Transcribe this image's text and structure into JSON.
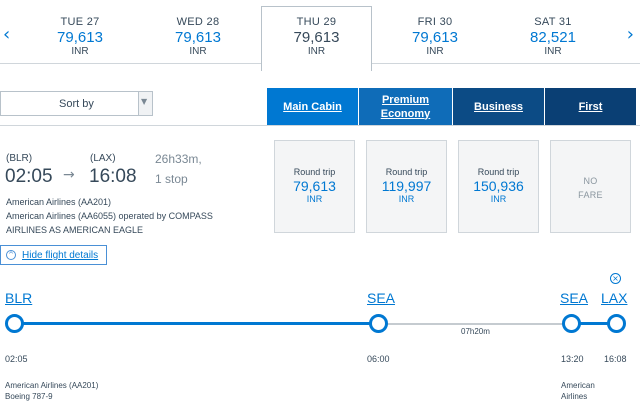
{
  "date_strip": {
    "prev_arrow": "‹",
    "next_arrow": "›",
    "days": [
      {
        "dow": "TUE 27",
        "price": "79,613",
        "currency": "INR"
      },
      {
        "dow": "WED 28",
        "price": "79,613",
        "currency": "INR"
      },
      {
        "dow": "THU 29",
        "price": "79,613",
        "currency": "INR"
      },
      {
        "dow": "FRI 30",
        "price": "79,613",
        "currency": "INR"
      },
      {
        "dow": "SAT 31",
        "price": "82,521",
        "currency": "INR"
      }
    ],
    "selected_index": 2
  },
  "sort": {
    "label": "Sort by",
    "caret": "▼"
  },
  "cabins": {
    "main": "Main Cabin",
    "premium_line1": "Premium",
    "premium_line2": "Economy",
    "business": "Business",
    "first": "First"
  },
  "flight": {
    "origin_code": "(BLR)",
    "dest_code": "(LAX)",
    "depart_time": "02:05",
    "arrive_time": "16:08",
    "arrow": "→",
    "duration": "26h33m,",
    "stops": "1 stop",
    "airline_line1": "American Airlines (AA201)",
    "airline_line2": "American Airlines (AA6055) operated by COMPASS",
    "airline_line3": "AIRLINES AS AMERICAN EAGLE",
    "hide_details_label": "Hide flight details",
    "hide_details_icon": "chevron-up-icon",
    "hide_details_glyph": "^"
  },
  "fares": [
    {
      "label": "Round trip",
      "amount": "79,613",
      "currency": "INR"
    },
    {
      "label": "Round trip",
      "amount": "119,997",
      "currency": "INR"
    },
    {
      "label": "Round trip",
      "amount": "150,936",
      "currency": "INR"
    },
    {
      "no_fare_line1": "NO",
      "no_fare_line2": "FARE"
    }
  ],
  "timeline": {
    "close_glyph": "×",
    "stops": [
      "BLR",
      "SEA",
      "SEA",
      "LAX"
    ],
    "times": [
      "02:05",
      "06:00",
      "13:20",
      "16:08"
    ],
    "layover": "07h20m",
    "leg1_airline": "American Airlines (AA201)",
    "leg1_aircraft": "Boeing 787-9",
    "leg2_airline_line1": "American",
    "leg2_airline_line2": "Airlines"
  },
  "colors": {
    "accent": "#0078d2",
    "main_cabin": "#0078d2",
    "premium": "#0f6cb8",
    "business": "#0c4b85",
    "first": "#0a3f74",
    "text": "#36495a"
  }
}
